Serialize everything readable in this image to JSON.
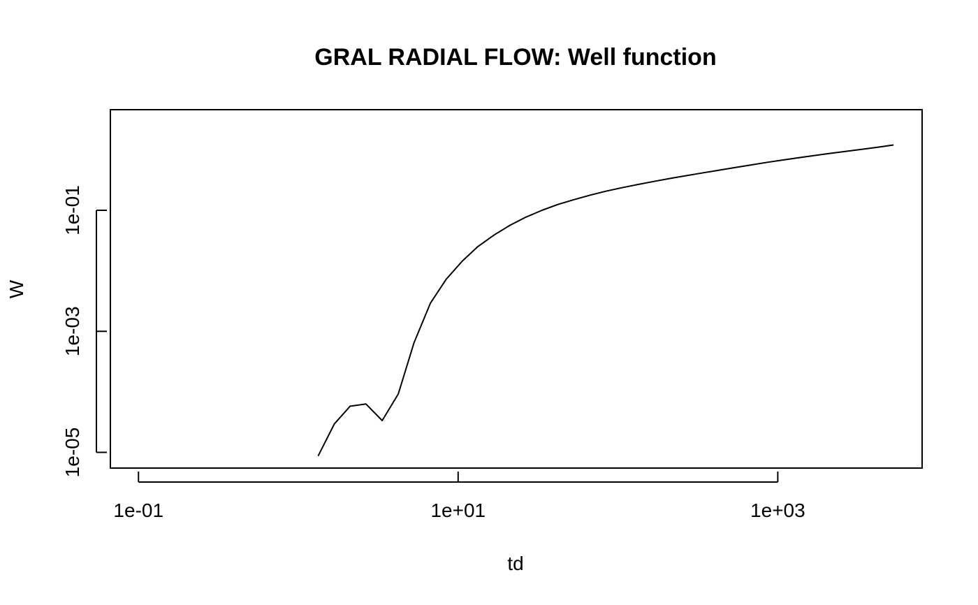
{
  "chart_data": {
    "type": "line",
    "title": "GRAL RADIAL FLOW: Well function",
    "xlabel": "td",
    "ylabel": "W",
    "x_scale": "log",
    "y_scale": "log",
    "xlim": [
      0.0667,
      8000
    ],
    "ylim": [
      5.5e-06,
      4.6
    ],
    "grid": false,
    "x_ticks": [
      {
        "value": 0.1,
        "label": "1e-01"
      },
      {
        "value": 10,
        "label": "1e+01"
      },
      {
        "value": 1000,
        "label": "1e+03"
      }
    ],
    "y_ticks": [
      {
        "value": 1e-05,
        "label": "1e-05"
      },
      {
        "value": 0.001,
        "label": "1e-03"
      },
      {
        "value": 0.1,
        "label": "1e-01"
      }
    ],
    "series": [
      {
        "color": "#000000",
        "x": [
          1.33,
          1.68,
          2.11,
          2.65,
          3.35,
          4.22,
          5.3,
          6.7,
          8.4,
          10.6,
          13.3,
          16.8,
          21.1,
          26.5,
          33.5,
          42.2,
          53,
          67,
          84,
          106,
          133,
          168,
          211,
          265,
          335,
          422,
          530,
          670,
          840,
          1060,
          1330,
          1680,
          2110,
          2650,
          3350,
          4220,
          5300
        ],
        "y": [
          8.7e-06,
          2.95e-05,
          5.8e-05,
          6.3e-05,
          3.35e-05,
          9.2e-05,
          0.00065,
          0.0029,
          0.0072,
          0.0144,
          0.0252,
          0.0392,
          0.0565,
          0.077,
          0.1,
          0.125,
          0.15,
          0.178,
          0.207,
          0.236,
          0.267,
          0.3,
          0.335,
          0.372,
          0.413,
          0.457,
          0.505,
          0.558,
          0.615,
          0.675,
          0.735,
          0.8,
          0.87,
          0.94,
          1.02,
          1.1,
          1.2
        ]
      }
    ]
  }
}
